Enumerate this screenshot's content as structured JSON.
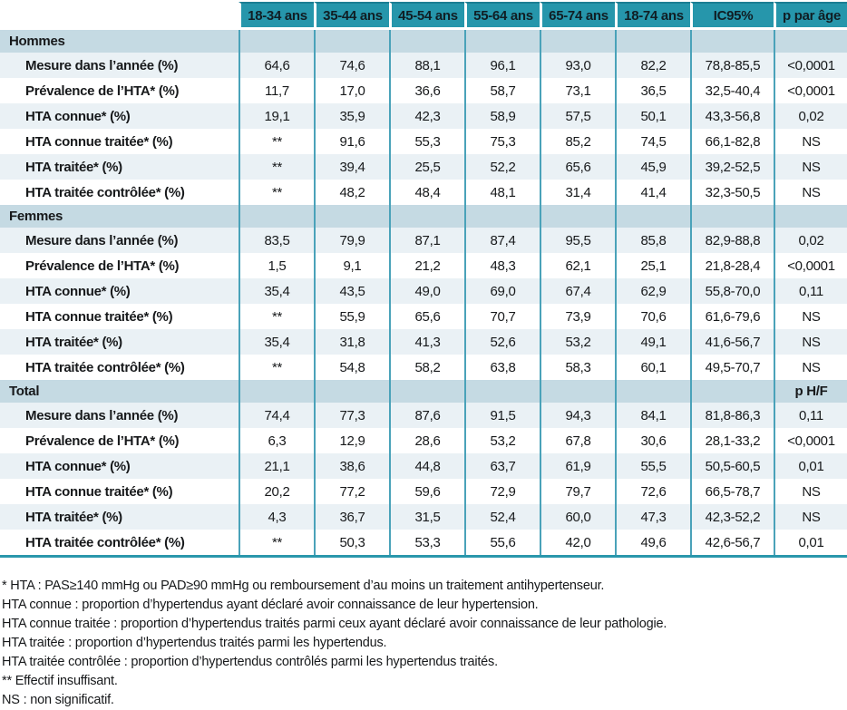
{
  "theme": {
    "header_bg": "#2696ab",
    "header_top_border": "#1b7e93",
    "header_text": "#101e24",
    "section_bg": "#c5dae3",
    "row_light_bg": "#eaf1f5",
    "row_white_bg": "#ffffff",
    "grid_line": "#4aa2b9",
    "table_bottom_border": "#2a97ac",
    "text": "#17191b"
  },
  "table": {
    "corner_label": "",
    "age_columns": [
      "18-34 ans",
      "35-44 ans",
      "45-54 ans",
      "55-64 ans",
      "65-74 ans",
      "18-74 ans",
      "IC95%",
      "p par âge"
    ],
    "sections": [
      {
        "title": "Hommes",
        "p_label": "",
        "rows": [
          {
            "label": "Mesure dans l’année (%)",
            "values": [
              "64,6",
              "74,6",
              "88,1",
              "96,1",
              "93,0",
              "82,2"
            ],
            "ic95": "78,8-85,5",
            "p": "<0,0001"
          },
          {
            "label": "Prévalence de l’HTA* (%)",
            "values": [
              "11,7",
              "17,0",
              "36,6",
              "58,7",
              "73,1",
              "36,5"
            ],
            "ic95": "32,5-40,4",
            "p": "<0,0001"
          },
          {
            "label": "HTA connue* (%)",
            "values": [
              "19,1",
              "35,9",
              "42,3",
              "58,9",
              "57,5",
              "50,1"
            ],
            "ic95": "43,3-56,8",
            "p": "0,02"
          },
          {
            "label": "HTA connue traitée* (%)",
            "values": [
              "**",
              "91,6",
              "55,3",
              "75,3",
              "85,2",
              "74,5"
            ],
            "ic95": "66,1-82,8",
            "p": "NS"
          },
          {
            "label": "HTA traitée* (%)",
            "values": [
              "**",
              "39,4",
              "25,5",
              "52,2",
              "65,6",
              "45,9"
            ],
            "ic95": "39,2-52,5",
            "p": "NS"
          },
          {
            "label": "HTA traitée contrôlée* (%)",
            "values": [
              "**",
              "48,2",
              "48,4",
              "48,1",
              "31,4",
              "41,4"
            ],
            "ic95": "32,3-50,5",
            "p": "NS"
          }
        ]
      },
      {
        "title": "Femmes",
        "p_label": "",
        "rows": [
          {
            "label": "Mesure dans l’année (%)",
            "values": [
              "83,5",
              "79,9",
              "87,1",
              "87,4",
              "95,5",
              "85,8"
            ],
            "ic95": "82,9-88,8",
            "p": "0,02"
          },
          {
            "label": "Prévalence de l’HTA* (%)",
            "values": [
              "1,5",
              "9,1",
              "21,2",
              "48,3",
              "62,1",
              "25,1"
            ],
            "ic95": "21,8-28,4",
            "p": "<0,0001"
          },
          {
            "label": "HTA connue* (%)",
            "values": [
              "35,4",
              "43,5",
              "49,0",
              "69,0",
              "67,4",
              "62,9"
            ],
            "ic95": "55,8-70,0",
            "p": "0,11"
          },
          {
            "label": "HTA connue traitée* (%)",
            "values": [
              "**",
              "55,9",
              "65,6",
              "70,7",
              "73,9",
              "70,6"
            ],
            "ic95": "61,6-79,6",
            "p": "NS"
          },
          {
            "label": "HTA traitée* (%)",
            "values": [
              "35,4",
              "31,8",
              "41,3",
              "52,6",
              "53,2",
              "49,1"
            ],
            "ic95": "41,6-56,7",
            "p": "NS"
          },
          {
            "label": "HTA traitée contrôlée* (%)",
            "values": [
              "**",
              "54,8",
              "58,2",
              "63,8",
              "58,3",
              "60,1"
            ],
            "ic95": "49,5-70,7",
            "p": "NS"
          }
        ]
      },
      {
        "title": "Total",
        "p_label": "p H/F",
        "rows": [
          {
            "label": "Mesure dans l’année (%)",
            "values": [
              "74,4",
              "77,3",
              "87,6",
              "91,5",
              "94,3",
              "84,1"
            ],
            "ic95": "81,8-86,3",
            "p": "0,11"
          },
          {
            "label": "Prévalence de l’HTA* (%)",
            "values": [
              "6,3",
              "12,9",
              "28,6",
              "53,2",
              "67,8",
              "30,6"
            ],
            "ic95": "28,1-33,2",
            "p": "<0,0001"
          },
          {
            "label": "HTA connue* (%)",
            "values": [
              "21,1",
              "38,6",
              "44,8",
              "63,7",
              "61,9",
              "55,5"
            ],
            "ic95": "50,5-60,5",
            "p": "0,01"
          },
          {
            "label": "HTA connue traitée* (%)",
            "values": [
              "20,2",
              "77,2",
              "59,6",
              "72,9",
              "79,7",
              "72,6"
            ],
            "ic95": "66,5-78,7",
            "p": "NS"
          },
          {
            "label": "HTA traitée* (%)",
            "values": [
              "4,3",
              "36,7",
              "31,5",
              "52,4",
              "60,0",
              "47,3"
            ],
            "ic95": "42,3-52,2",
            "p": "NS"
          },
          {
            "label": "HTA traitée contrôlée* (%)",
            "values": [
              "**",
              "50,3",
              "53,3",
              "55,6",
              "42,0",
              "49,6"
            ],
            "ic95": "42,6-56,7",
            "p": "0,01"
          }
        ]
      }
    ]
  },
  "footnotes": [
    "* HTA : PAS≥140 mmHg ou PAD≥90 mmHg ou remboursement d’au moins un traitement antihypertenseur.",
    "HTA connue : proportion d’hypertendus ayant déclaré avoir connaissance de leur hypertension.",
    "HTA connue traitée : proportion d’hypertendus traités parmi ceux ayant déclaré avoir connaissance de leur pathologie.",
    "HTA traitée : proportion d’hypertendus traités parmi les hypertendus.",
    "HTA traitée contrôlée : proportion d’hypertendus contrôlés parmi les hypertendus traités.",
    "** Effectif insuffisant.",
    "NS : non significatif."
  ]
}
